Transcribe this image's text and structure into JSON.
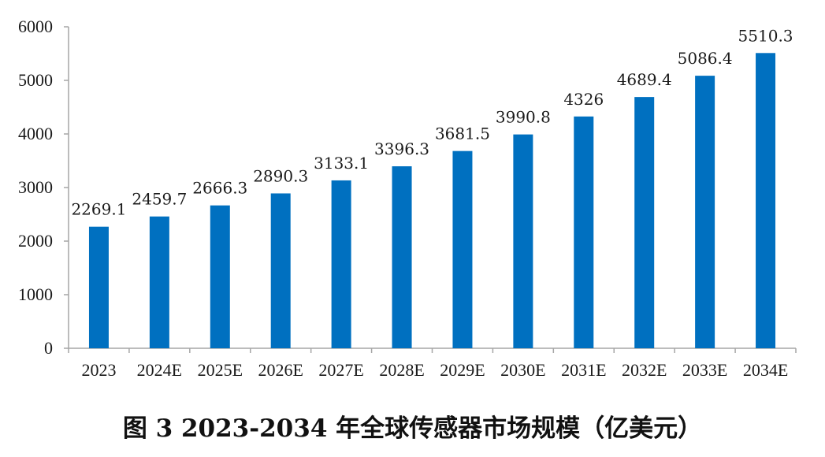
{
  "caption": "图 3    2023-2034 年全球传感器市场规模（亿美元）",
  "chart_data": {
    "type": "bar",
    "title": "",
    "xlabel": "",
    "ylabel": "",
    "categories": [
      "2023",
      "2024E",
      "2025E",
      "2026E",
      "2027E",
      "2028E",
      "2029E",
      "2030E",
      "2031E",
      "2032E",
      "2033E",
      "2034E"
    ],
    "values": [
      2269.1,
      2459.7,
      2666.3,
      2890.3,
      3133.1,
      3396.3,
      3681.5,
      3990.8,
      4326,
      4689.4,
      5086.4,
      5510.3
    ],
    "data_labels": [
      "2269.1",
      "2459.7",
      "2666.3",
      "2890.3",
      "3133.1",
      "3396.3",
      "3681.5",
      "3990.8",
      "4326",
      "4689.4",
      "5086.4",
      "5510.3"
    ],
    "ylim": [
      0,
      6000
    ],
    "yticks": [
      0,
      1000,
      2000,
      3000,
      4000,
      5000,
      6000
    ],
    "ytick_labels": [
      "0",
      "1000",
      "2000",
      "3000",
      "4000",
      "5000",
      "6000"
    ],
    "grid": false,
    "legend": "none",
    "bar_color": "#0070C0",
    "axis_color": "#A6A6A6"
  }
}
